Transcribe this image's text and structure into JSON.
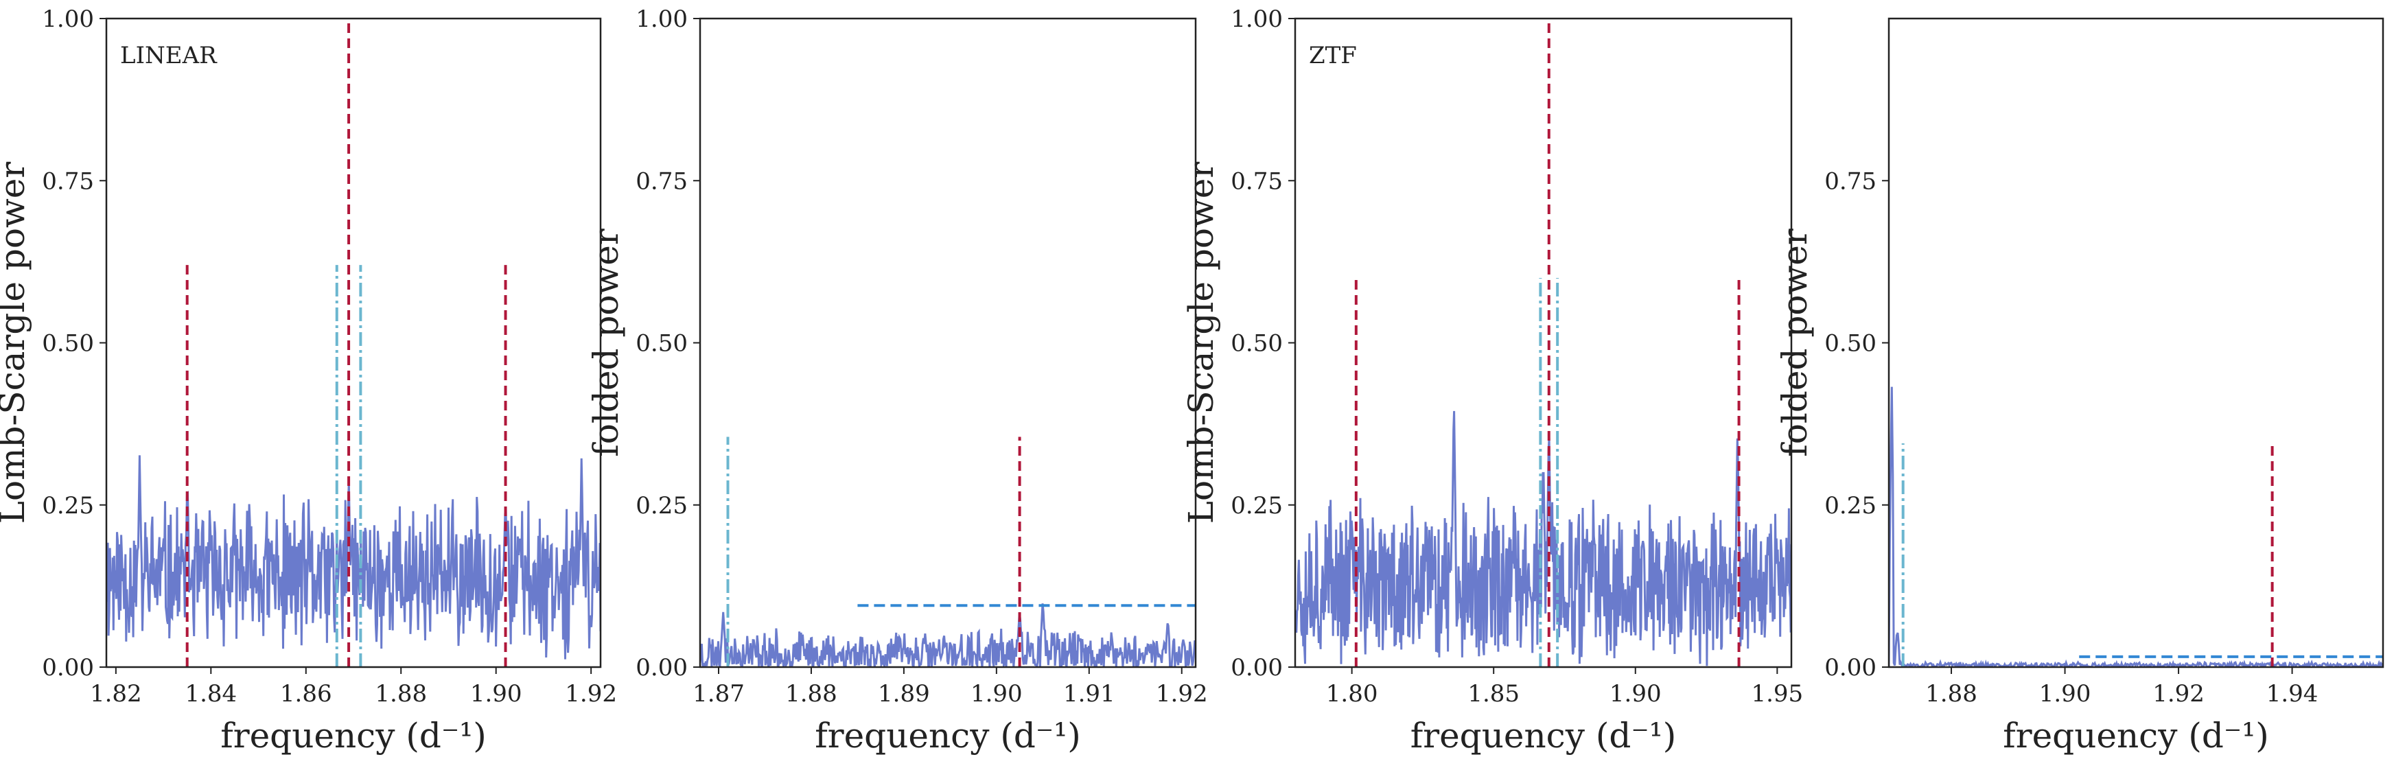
{
  "colors": {
    "signal": "#6a7bcc",
    "red_marker": "#b0173a",
    "cyan_marker": "#6bb6cf",
    "blue_threshold": "#3388d4",
    "frame": "#222222"
  },
  "chart_data": [
    {
      "type": "line",
      "annotation": "LINEAR",
      "xlabel": "frequency (d⁻¹)",
      "ylabel": "Lomb-Scargle power",
      "xlim": [
        1.818,
        1.922
      ],
      "ylim": [
        0,
        1.0
      ],
      "xticks": [
        1.82,
        1.84,
        1.86,
        1.88,
        1.9,
        1.92
      ],
      "xtick_labels": [
        "1.82",
        "1.84",
        "1.86",
        "1.88",
        "1.90",
        "1.92"
      ],
      "yticks": [
        0,
        0.25,
        0.5,
        0.75,
        1.0
      ],
      "ytick_labels": [
        "0.00",
        "0.25",
        "0.50",
        "0.75",
        "1.00"
      ],
      "grid": false,
      "noise": {
        "base": 0.14,
        "amp": 0.11,
        "seed": 11,
        "n": 700
      },
      "peaks": [
        {
          "x": 1.869,
          "y": 0.3
        },
        {
          "x": 1.835,
          "y": 0.28
        },
        {
          "x": 1.902,
          "y": 0.27
        },
        {
          "x": 1.825,
          "y": 0.33
        },
        {
          "x": 1.918,
          "y": 0.33
        }
      ],
      "markers": [
        {
          "x": 1.869,
          "y0": 0.0,
          "y1": 1.0,
          "style": "red"
        },
        {
          "x": 1.835,
          "y0": 0.0,
          "y1": 0.62,
          "style": "red"
        },
        {
          "x": 1.902,
          "y0": 0.0,
          "y1": 0.62,
          "style": "red"
        },
        {
          "x": 1.8665,
          "y0": 0.0,
          "y1": 0.62,
          "style": "cyan"
        },
        {
          "x": 1.8715,
          "y0": 0.0,
          "y1": 0.62,
          "style": "cyan"
        }
      ],
      "threshold": null
    },
    {
      "type": "line",
      "annotation": "",
      "xlabel": "frequency (d⁻¹)",
      "ylabel": "folded power",
      "xlim": [
        1.868,
        1.9215
      ],
      "ylim": [
        0,
        1.0
      ],
      "xticks": [
        1.87,
        1.88,
        1.89,
        1.9,
        1.91,
        1.92
      ],
      "xtick_labels": [
        "1.87",
        "1.88",
        "1.89",
        "1.90",
        "1.91",
        "1.92"
      ],
      "yticks": [
        0,
        0.25,
        0.5,
        0.75,
        1.0
      ],
      "ytick_labels": [
        "0.00",
        "0.25",
        "0.50",
        "0.75",
        "1.00"
      ],
      "grid": false,
      "noise": {
        "base": 0.02,
        "amp": 0.035,
        "seed": 23,
        "n": 600
      },
      "peaks": [
        {
          "x": 1.8705,
          "y": 0.085
        },
        {
          "x": 1.9025,
          "y": 0.09
        },
        {
          "x": 1.905,
          "y": 0.105
        },
        {
          "x": 1.9185,
          "y": 0.075
        }
      ],
      "markers": [
        {
          "x": 1.871,
          "y0": 0.0,
          "y1": 0.355,
          "style": "cyan"
        },
        {
          "x": 1.9025,
          "y0": 0.0,
          "y1": 0.355,
          "style": "red"
        }
      ],
      "threshold": {
        "x0": 1.885,
        "x1": 1.9215,
        "y": 0.095
      }
    },
    {
      "type": "line",
      "annotation": "ZTF",
      "xlabel": "frequency (d⁻¹)",
      "ylabel": "Lomb-Scargle power",
      "xlim": [
        1.78,
        1.955
      ],
      "ylim": [
        0,
        1.0
      ],
      "xticks": [
        1.8,
        1.85,
        1.9,
        1.95
      ],
      "xtick_labels": [
        "1.80",
        "1.85",
        "1.90",
        "1.95"
      ],
      "yticks": [
        0,
        0.25,
        0.5,
        0.75,
        1.0
      ],
      "ytick_labels": [
        "0.00",
        "0.25",
        "0.50",
        "0.75",
        "1.00"
      ],
      "grid": false,
      "noise": {
        "base": 0.13,
        "amp": 0.12,
        "seed": 37,
        "n": 800
      },
      "peaks": [
        {
          "x": 1.8695,
          "y": 0.38
        },
        {
          "x": 1.8675,
          "y": 0.33
        },
        {
          "x": 1.836,
          "y": 0.42
        },
        {
          "x": 1.936,
          "y": 0.37
        },
        {
          "x": 1.8,
          "y": 0.24
        }
      ],
      "markers": [
        {
          "x": 1.8695,
          "y0": 0.0,
          "y1": 1.0,
          "style": "red"
        },
        {
          "x": 1.8015,
          "y0": 0.0,
          "y1": 0.6,
          "style": "red"
        },
        {
          "x": 1.9365,
          "y0": 0.0,
          "y1": 0.6,
          "style": "red"
        },
        {
          "x": 1.8665,
          "y0": 0.0,
          "y1": 0.6,
          "style": "cyan"
        },
        {
          "x": 1.8725,
          "y0": 0.0,
          "y1": 0.6,
          "style": "cyan"
        }
      ],
      "threshold": null
    },
    {
      "type": "line",
      "annotation": "",
      "xlabel": "frequency (d⁻¹)",
      "ylabel": "folded power",
      "xlim": [
        1.869,
        1.956
      ],
      "ylim": [
        0,
        1.0
      ],
      "xticks": [
        1.88,
        1.9,
        1.92,
        1.94
      ],
      "xtick_labels": [
        "1.88",
        "1.90",
        "1.92",
        "1.94"
      ],
      "yticks": [
        0,
        0.25,
        0.5,
        0.75
      ],
      "ytick_labels": [
        "0.00",
        "0.25",
        "0.50",
        "0.75"
      ],
      "grid": false,
      "noise": {
        "base": 0.003,
        "amp": 0.004,
        "seed": 51,
        "n": 500
      },
      "peaks": [
        {
          "x": 1.8695,
          "y": 0.45
        },
        {
          "x": 1.8705,
          "y": 0.06
        }
      ],
      "markers": [
        {
          "x": 1.8715,
          "y0": 0.0,
          "y1": 0.345,
          "style": "cyan"
        },
        {
          "x": 1.9365,
          "y0": 0.0,
          "y1": 0.345,
          "style": "red"
        }
      ],
      "threshold": {
        "x0": 1.9025,
        "x1": 1.956,
        "y": 0.016
      }
    }
  ]
}
